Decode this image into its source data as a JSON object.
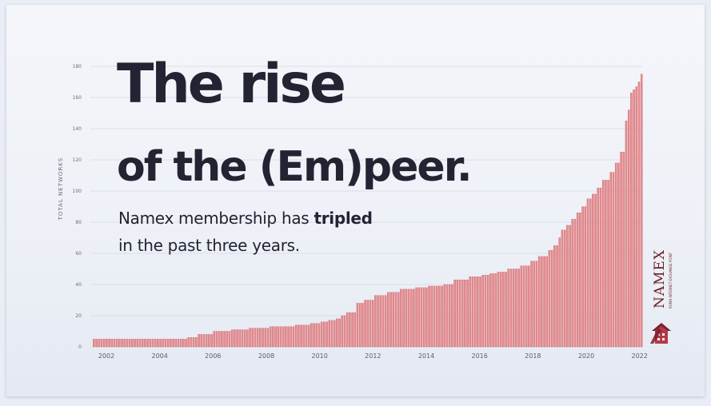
{
  "slide": {
    "title_line1": "The rise",
    "title_line2": "of the (Em)peer.",
    "subtitle_line1_pre": "Namex membership has ",
    "subtitle_line1_bold": "tripled",
    "subtitle_line2": "in the past three years."
  },
  "brand": {
    "name": "NAMEX",
    "tagline": "ROMA INTERNET EXCHANGE POINT",
    "logo_icon": "building-emblem-icon",
    "color": "#7a1f2b"
  },
  "chart_data": {
    "type": "bar",
    "title": "",
    "xlabel": "",
    "ylabel": "TOTAL NETWORKS",
    "ylim": [
      0,
      180
    ],
    "yticks": [
      0,
      20,
      40,
      60,
      80,
      100,
      120,
      140,
      160,
      180
    ],
    "xlim": [
      2001.4,
      2022.1
    ],
    "xticks": [
      "2002",
      "2004",
      "2006",
      "2008",
      "2010",
      "2012",
      "2014",
      "2016",
      "2018",
      "2020",
      "2022"
    ],
    "grid": true,
    "bar_color": "#e88e90",
    "bar_edge_color": "#c7575d",
    "series": [
      {
        "x": [
          2001.5,
          2005.0,
          2005.4,
          2006.0,
          2006.6,
          2007.3,
          2008.1,
          2009.0,
          2009.6,
          2010.0,
          2010.3,
          2010.6,
          2010.8,
          2011.0,
          2011.3,
          2011.6,
          2012.0,
          2012.5,
          2013.0,
          2013.5,
          2014.0,
          2014.6,
          2015.0,
          2015.6,
          2016.0,
          2016.3,
          2016.6,
          2017.0,
          2017.5,
          2017.9,
          2018.2,
          2018.5,
          2018.7,
          2018.9,
          2019.0,
          2019.2,
          2019.4,
          2019.6,
          2019.8,
          2020.0,
          2020.2,
          2020.4,
          2020.6,
          2020.8,
          2021.0,
          2021.2,
          2021.4,
          2021.5,
          2021.6,
          2021.7,
          2021.8,
          2021.9,
          2022.0,
          2022.1
        ],
        "values": [
          5,
          6,
          8,
          10,
          11,
          12,
          13,
          14,
          15,
          16,
          17,
          18,
          20,
          22,
          28,
          30,
          33,
          35,
          37,
          38,
          39,
          40,
          43,
          45,
          46,
          47,
          48,
          50,
          52,
          55,
          58,
          62,
          65,
          70,
          75,
          78,
          82,
          86,
          90,
          95,
          98,
          102,
          107,
          112,
          118,
          125,
          145,
          152,
          163,
          165,
          167,
          170,
          175,
          181
        ]
      }
    ]
  }
}
